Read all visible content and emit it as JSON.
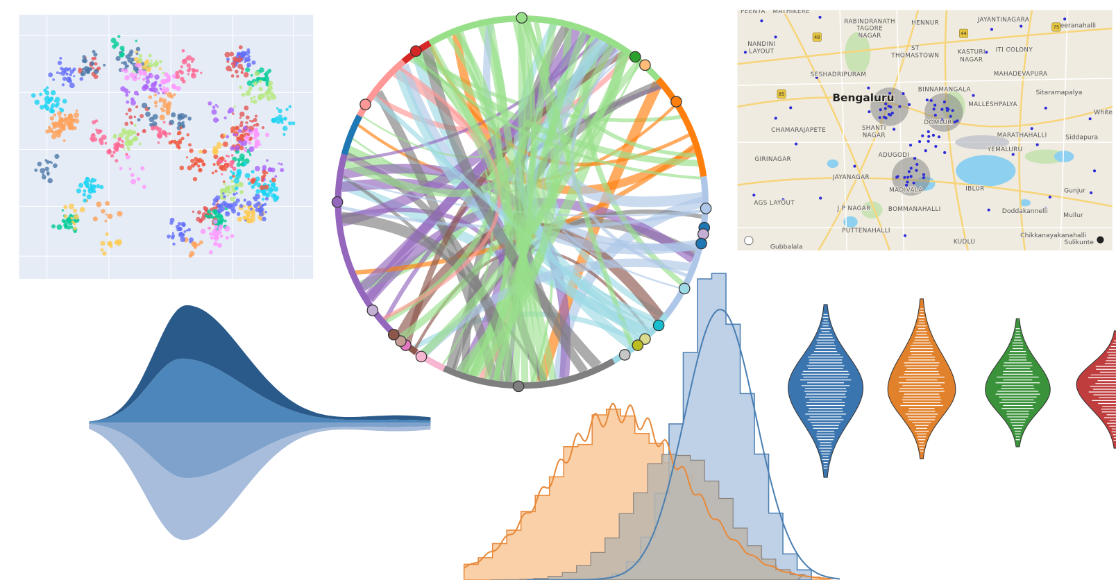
{
  "map": {
    "labels": [
      "Bengaluru",
      "PEENYA",
      "MATHIKERE",
      "RABINDRANATH",
      "TAGORE",
      "NAGAR",
      "HENNUR",
      "JAYANTINAGARA",
      "Veeranahalli",
      "NANDINI",
      "LAYOUT",
      "ST",
      "THOMASTOWN",
      "KASTURI",
      "NAGAR",
      "ITI COLONY",
      "SESHADRIPURAM",
      "BINNAMANGALA",
      "MAHADEVAPURA",
      "Sitaramapalya",
      "MALLESHPALYA",
      "White",
      "CHAMARAJAPETE",
      "SHANTI",
      "NAGAR",
      "DOMLUR",
      "MARATHAHALLI",
      "Siddapura",
      "YEMALURU",
      "ADUGODI",
      "GIRINAGAR",
      "JAYANAGAR",
      "MADIVALA",
      "IBLUR",
      "Gunjur",
      "J P NAGAR",
      "BOMMANAHALLI",
      "Doddakannelli",
      "Mullur",
      "AGS LAYOUT",
      "PUTTENAHALLI",
      "Chikkanayakanahalli",
      "Gubbalala",
      "KUDLU",
      "Sulikunte"
    ],
    "route_shields": [
      "48",
      "44",
      "85",
      "75"
    ]
  }
}
